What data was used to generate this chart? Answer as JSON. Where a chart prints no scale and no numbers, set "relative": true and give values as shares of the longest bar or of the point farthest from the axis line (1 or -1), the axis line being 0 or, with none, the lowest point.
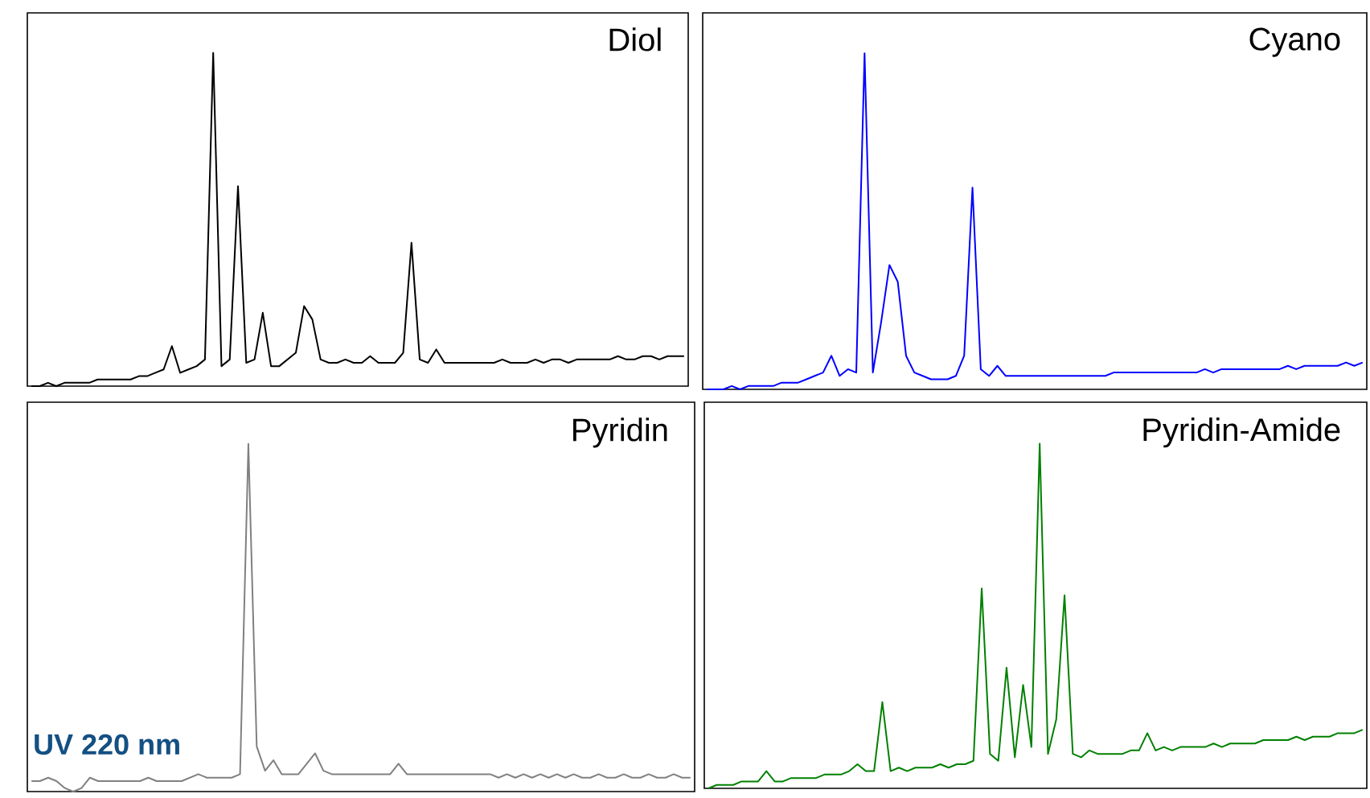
{
  "chart_data": [
    {
      "type": "line",
      "title": "Diol",
      "relative": true,
      "color": "#000000",
      "categories": [
        null,
        null,
        null,
        null,
        null,
        null,
        null,
        null,
        null,
        null,
        null,
        null,
        null,
        null,
        null,
        null,
        null,
        null,
        null,
        null,
        null,
        null,
        null,
        null,
        null,
        null,
        null,
        null,
        null,
        null,
        null,
        null,
        null,
        null,
        null,
        null,
        null,
        null,
        null,
        null,
        null,
        null,
        null,
        null,
        null,
        null,
        null,
        null,
        null,
        null,
        null,
        null,
        null,
        null,
        null,
        null,
        null,
        null,
        null,
        null,
        null,
        null,
        null,
        null,
        null,
        null,
        null,
        null,
        null,
        null,
        null,
        null,
        null,
        null,
        null,
        null,
        null,
        null,
        null,
        null
      ],
      "values": [
        0,
        0,
        0.01,
        0,
        0.01,
        0.01,
        0.01,
        0.01,
        0.02,
        0.02,
        0.02,
        0.02,
        0.02,
        0.03,
        0.03,
        0.04,
        0.05,
        0.12,
        0.04,
        0.05,
        0.06,
        0.08,
        1.0,
        0.06,
        0.08,
        0.6,
        0.07,
        0.08,
        0.22,
        0.06,
        0.06,
        0.08,
        0.1,
        0.24,
        0.2,
        0.08,
        0.07,
        0.07,
        0.08,
        0.07,
        0.07,
        0.09,
        0.07,
        0.07,
        0.07,
        0.1,
        0.43,
        0.08,
        0.07,
        0.11,
        0.07,
        0.07,
        0.07,
        0.07,
        0.07,
        0.07,
        0.07,
        0.08,
        0.07,
        0.07,
        0.07,
        0.08,
        0.07,
        0.08,
        0.08,
        0.07,
        0.08,
        0.08,
        0.08,
        0.08,
        0.08,
        0.09,
        0.08,
        0.08,
        0.09,
        0.09,
        0.08,
        0.09,
        0.09,
        0.09
      ]
    },
    {
      "type": "line",
      "title": "Cyano",
      "relative": true,
      "color": "#0000ff",
      "categories": [
        null,
        null,
        null,
        null,
        null,
        null,
        null,
        null,
        null,
        null,
        null,
        null,
        null,
        null,
        null,
        null,
        null,
        null,
        null,
        null,
        null,
        null,
        null,
        null,
        null,
        null,
        null,
        null,
        null,
        null,
        null,
        null,
        null,
        null,
        null,
        null,
        null,
        null,
        null,
        null,
        null,
        null,
        null,
        null,
        null,
        null,
        null,
        null,
        null,
        null,
        null,
        null,
        null,
        null,
        null,
        null,
        null,
        null,
        null,
        null,
        null,
        null,
        null,
        null,
        null,
        null,
        null,
        null,
        null,
        null,
        null,
        null,
        null,
        null,
        null,
        null,
        null,
        null,
        null,
        null
      ],
      "values": [
        0,
        0,
        0,
        0.01,
        0,
        0.01,
        0.01,
        0.01,
        0.01,
        0.02,
        0.02,
        0.02,
        0.03,
        0.04,
        0.05,
        0.1,
        0.04,
        0.06,
        0.05,
        1.0,
        0.05,
        0.2,
        0.37,
        0.32,
        0.1,
        0.05,
        0.04,
        0.03,
        0.03,
        0.03,
        0.04,
        0.1,
        0.6,
        0.06,
        0.04,
        0.07,
        0.04,
        0.04,
        0.04,
        0.04,
        0.04,
        0.04,
        0.04,
        0.04,
        0.04,
        0.04,
        0.04,
        0.04,
        0.04,
        0.05,
        0.05,
        0.05,
        0.05,
        0.05,
        0.05,
        0.05,
        0.05,
        0.05,
        0.05,
        0.05,
        0.06,
        0.05,
        0.06,
        0.06,
        0.06,
        0.06,
        0.06,
        0.06,
        0.06,
        0.06,
        0.07,
        0.06,
        0.07,
        0.07,
        0.07,
        0.07,
        0.07,
        0.08,
        0.07,
        0.08
      ]
    },
    {
      "type": "line",
      "title": "Pyridin",
      "relative": true,
      "color": "#808080",
      "annotations": [
        "UV 220 nm"
      ],
      "categories": [
        null,
        null,
        null,
        null,
        null,
        null,
        null,
        null,
        null,
        null,
        null,
        null,
        null,
        null,
        null,
        null,
        null,
        null,
        null,
        null,
        null,
        null,
        null,
        null,
        null,
        null,
        null,
        null,
        null,
        null,
        null,
        null,
        null,
        null,
        null,
        null,
        null,
        null,
        null,
        null,
        null,
        null,
        null,
        null,
        null,
        null,
        null,
        null,
        null,
        null,
        null,
        null,
        null,
        null,
        null,
        null,
        null,
        null,
        null,
        null,
        null,
        null,
        null,
        null,
        null,
        null,
        null,
        null,
        null,
        null,
        null,
        null,
        null,
        null,
        null,
        null,
        null,
        null,
        null,
        null
      ],
      "values": [
        0.03,
        0.03,
        0.04,
        0.03,
        0.01,
        0,
        0.01,
        0.04,
        0.03,
        0.03,
        0.03,
        0.03,
        0.03,
        0.03,
        0.04,
        0.03,
        0.03,
        0.03,
        0.03,
        0.04,
        0.05,
        0.04,
        0.04,
        0.04,
        0.04,
        0.05,
        1.0,
        0.13,
        0.06,
        0.09,
        0.05,
        0.05,
        0.05,
        0.08,
        0.11,
        0.06,
        0.05,
        0.05,
        0.05,
        0.05,
        0.05,
        0.05,
        0.05,
        0.05,
        0.08,
        0.05,
        0.05,
        0.05,
        0.05,
        0.05,
        0.05,
        0.05,
        0.05,
        0.05,
        0.05,
        0.05,
        0.04,
        0.05,
        0.04,
        0.05,
        0.04,
        0.05,
        0.04,
        0.05,
        0.04,
        0.05,
        0.04,
        0.04,
        0.05,
        0.04,
        0.04,
        0.05,
        0.04,
        0.04,
        0.05,
        0.04,
        0.04,
        0.05,
        0.04,
        0.04
      ]
    },
    {
      "type": "line",
      "title": "Pyridin-Amide",
      "relative": true,
      "color": "#008000",
      "categories": [
        null,
        null,
        null,
        null,
        null,
        null,
        null,
        null,
        null,
        null,
        null,
        null,
        null,
        null,
        null,
        null,
        null,
        null,
        null,
        null,
        null,
        null,
        null,
        null,
        null,
        null,
        null,
        null,
        null,
        null,
        null,
        null,
        null,
        null,
        null,
        null,
        null,
        null,
        null,
        null,
        null,
        null,
        null,
        null,
        null,
        null,
        null,
        null,
        null,
        null,
        null,
        null,
        null,
        null,
        null,
        null,
        null,
        null,
        null,
        null,
        null,
        null,
        null,
        null,
        null,
        null,
        null,
        null,
        null,
        null,
        null,
        null,
        null,
        null,
        null,
        null,
        null,
        null,
        null,
        null
      ],
      "values": [
        0,
        0.01,
        0.01,
        0.01,
        0.02,
        0.02,
        0.02,
        0.05,
        0.02,
        0.02,
        0.03,
        0.03,
        0.03,
        0.03,
        0.04,
        0.04,
        0.04,
        0.05,
        0.07,
        0.05,
        0.05,
        0.25,
        0.05,
        0.06,
        0.05,
        0.06,
        0.06,
        0.06,
        0.07,
        0.06,
        0.07,
        0.07,
        0.08,
        0.58,
        0.1,
        0.08,
        0.35,
        0.09,
        0.3,
        0.12,
        1.0,
        0.1,
        0.2,
        0.56,
        0.1,
        0.09,
        0.11,
        0.1,
        0.1,
        0.1,
        0.1,
        0.11,
        0.11,
        0.16,
        0.11,
        0.12,
        0.11,
        0.12,
        0.12,
        0.12,
        0.12,
        0.13,
        0.12,
        0.13,
        0.13,
        0.13,
        0.13,
        0.14,
        0.14,
        0.14,
        0.14,
        0.15,
        0.14,
        0.15,
        0.15,
        0.15,
        0.16,
        0.16,
        0.16,
        0.17
      ]
    }
  ]
}
